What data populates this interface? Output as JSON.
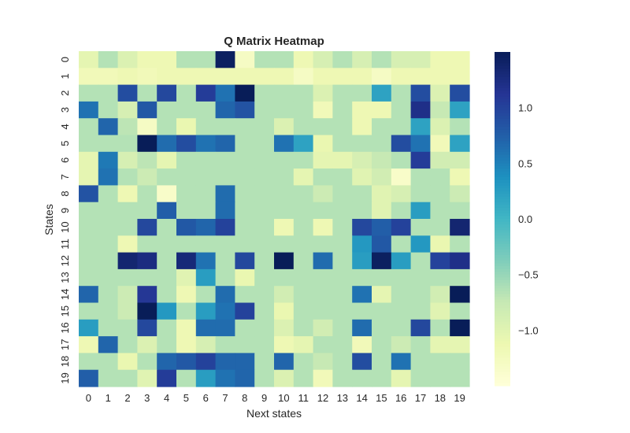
{
  "chart_data": {
    "type": "heatmap",
    "title": "Q Matrix Heatmap",
    "xlabel": "Next states",
    "ylabel": "States",
    "x_categories": [
      "0",
      "1",
      "2",
      "3",
      "4",
      "5",
      "6",
      "7",
      "8",
      "9",
      "10",
      "11",
      "12",
      "13",
      "14",
      "15",
      "16",
      "17",
      "18",
      "19"
    ],
    "y_categories": [
      "0",
      "1",
      "2",
      "3",
      "4",
      "5",
      "6",
      "7",
      "8",
      "9",
      "10",
      "11",
      "12",
      "13",
      "14",
      "15",
      "16",
      "17",
      "18",
      "19"
    ],
    "colormap": "YlGnBu",
    "vmin": -1.5,
    "vmax": 1.5,
    "colorbar_ticks": [
      1.0,
      0.5,
      0.0,
      -0.5,
      -1.0
    ],
    "colorbar_tick_labels": [
      "1.0",
      "0.5",
      "0.0",
      "−0.5",
      "−1.0"
    ],
    "values": [
      [
        -1.05,
        -0.65,
        -0.95,
        -1.15,
        -1.15,
        -0.65,
        -0.65,
        1.45,
        -1.3,
        -0.65,
        -0.65,
        -1.15,
        -0.9,
        -0.65,
        -0.9,
        -0.65,
        -0.9,
        -0.9,
        -1.15,
        -1.15
      ],
      [
        -1.2,
        -1.2,
        -1.15,
        -1.2,
        -1.15,
        -1.15,
        -1.15,
        -1.15,
        -1.15,
        -1.15,
        -1.15,
        -1.3,
        -1.15,
        -1.15,
        -1.15,
        -1.3,
        -1.15,
        -1.15,
        -1.15,
        -1.15
      ],
      [
        -0.65,
        -0.65,
        0.9,
        -0.65,
        0.95,
        -0.65,
        1.05,
        0.6,
        1.5,
        -0.65,
        -0.65,
        -0.65,
        -0.95,
        -0.65,
        -0.65,
        0.2,
        -0.65,
        0.9,
        -0.95,
        0.9
      ],
      [
        0.6,
        -0.65,
        -0.9,
        0.8,
        -0.65,
        -0.65,
        -0.65,
        0.7,
        0.85,
        -0.65,
        -0.65,
        -0.65,
        -1.2,
        -0.65,
        -1.15,
        -1.15,
        -0.65,
        1.2,
        -0.75,
        0.2
      ],
      [
        -0.65,
        0.7,
        -0.7,
        -1.3,
        -0.65,
        -1.1,
        -0.65,
        -0.65,
        -0.65,
        -0.65,
        -0.95,
        -0.65,
        -0.65,
        -0.65,
        -1.15,
        -0.65,
        -0.65,
        0.2,
        -0.95,
        -0.65
      ],
      [
        -0.65,
        -0.65,
        -0.65,
        1.55,
        0.65,
        0.9,
        0.6,
        0.7,
        -0.65,
        -0.65,
        0.6,
        0.2,
        -1.1,
        -0.65,
        -0.65,
        -0.65,
        0.9,
        0.6,
        -1.2,
        0.2
      ],
      [
        -1.05,
        0.55,
        -0.9,
        -0.7,
        -1.05,
        -0.65,
        -0.65,
        -0.65,
        -0.65,
        -0.65,
        -0.65,
        -0.65,
        -1.05,
        -1.05,
        -0.9,
        -0.75,
        -0.65,
        1.05,
        -0.85,
        -0.85
      ],
      [
        -1.05,
        0.6,
        -0.65,
        -0.8,
        -0.65,
        -0.65,
        -0.65,
        -0.65,
        -0.65,
        -0.65,
        -0.65,
        -1.05,
        -0.65,
        -0.65,
        -1.0,
        -0.85,
        -1.35,
        -0.65,
        -0.65,
        -1.15
      ],
      [
        0.85,
        -0.65,
        -1.15,
        -0.65,
        -1.35,
        -0.65,
        -0.65,
        0.65,
        -0.65,
        -0.65,
        -0.65,
        -0.65,
        -0.8,
        -0.65,
        -0.65,
        -1.0,
        -0.9,
        -0.65,
        -0.65,
        -0.8
      ],
      [
        -0.65,
        -0.65,
        -0.65,
        -0.65,
        0.75,
        -0.65,
        -0.65,
        0.65,
        -0.65,
        -0.65,
        -0.65,
        -0.65,
        -0.65,
        -0.65,
        -0.65,
        -1.0,
        -0.65,
        0.25,
        -0.65,
        -0.65
      ],
      [
        -0.65,
        -0.65,
        -0.65,
        0.95,
        -0.65,
        0.8,
        0.7,
        1.0,
        -0.65,
        -0.65,
        -1.15,
        -0.65,
        -1.15,
        -0.65,
        0.95,
        0.75,
        1.0,
        -0.65,
        -0.65,
        1.35
      ],
      [
        -0.65,
        -0.65,
        -1.15,
        -0.65,
        -0.65,
        -0.65,
        -0.65,
        -0.65,
        -0.65,
        -0.65,
        -0.65,
        -0.65,
        -0.65,
        -0.65,
        0.3,
        0.8,
        -0.65,
        0.3,
        -1.1,
        -0.65
      ],
      [
        -0.65,
        -0.65,
        1.35,
        1.25,
        -0.65,
        1.3,
        0.6,
        -0.65,
        0.95,
        -0.65,
        1.6,
        -0.65,
        0.65,
        -0.65,
        0.25,
        1.45,
        0.25,
        -0.65,
        1.0,
        1.2
      ],
      [
        -0.65,
        -0.65,
        -0.65,
        -0.65,
        -0.65,
        -1.0,
        0.25,
        -0.65,
        -1.1,
        -0.65,
        -0.65,
        -0.65,
        -0.65,
        -0.65,
        -0.65,
        -0.65,
        -0.65,
        -0.65,
        -0.65,
        -0.65
      ],
      [
        0.7,
        -0.65,
        -0.8,
        1.1,
        -0.65,
        -1.15,
        -0.65,
        0.65,
        -0.65,
        -0.65,
        -0.85,
        -0.65,
        -0.65,
        -0.65,
        0.6,
        -1.05,
        -0.65,
        -0.65,
        -0.85,
        1.6
      ],
      [
        -0.65,
        -0.65,
        -0.8,
        1.6,
        0.3,
        -0.65,
        0.25,
        0.6,
        1.0,
        -0.65,
        -1.1,
        -0.65,
        -0.65,
        -0.65,
        -0.65,
        -0.65,
        -0.65,
        -0.65,
        -1.0,
        -0.65
      ],
      [
        0.25,
        -0.65,
        -0.65,
        0.95,
        -0.65,
        -1.15,
        0.65,
        0.65,
        -0.65,
        -0.65,
        -0.95,
        -0.65,
        -0.85,
        -0.65,
        0.65,
        -0.65,
        -0.65,
        0.95,
        -0.65,
        1.55
      ],
      [
        -1.15,
        0.7,
        -0.65,
        -0.95,
        -0.65,
        -1.15,
        -0.9,
        -0.65,
        -0.65,
        -0.65,
        -1.15,
        -1.05,
        -0.65,
        -0.65,
        -1.2,
        -0.65,
        -0.8,
        -0.65,
        -1.05,
        -1.05
      ],
      [
        -0.65,
        -0.65,
        -1.1,
        -0.65,
        0.7,
        0.8,
        1.0,
        0.7,
        0.7,
        -0.65,
        0.7,
        -0.65,
        -0.75,
        -0.65,
        0.9,
        -0.65,
        0.6,
        -0.65,
        -0.65,
        -0.65
      ],
      [
        0.75,
        -0.65,
        -0.65,
        -1.0,
        1.05,
        -0.65,
        0.25,
        0.6,
        0.7,
        -0.65,
        -0.95,
        -0.65,
        -1.2,
        -0.65,
        -0.65,
        -0.65,
        -1.05,
        -0.65,
        -0.65,
        -0.65
      ]
    ]
  }
}
